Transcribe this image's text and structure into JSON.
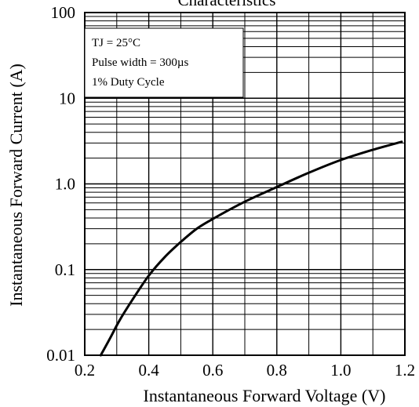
{
  "chart_data": {
    "type": "line",
    "title": "Characteristics",
    "xlabel": "Instantaneous Forward Voltage (V)",
    "ylabel": "Instantaneous Forward Current (A)",
    "xlim": [
      0.2,
      1.2
    ],
    "ylim": [
      0.01,
      100
    ],
    "yscale": "log",
    "grid": true,
    "x_ticks": [
      {
        "v": 0.2,
        "label": "0.2"
      },
      {
        "v": 0.4,
        "label": "0.4"
      },
      {
        "v": 0.6,
        "label": "0.6"
      },
      {
        "v": 0.8,
        "label": "0.8"
      },
      {
        "v": 1.0,
        "label": "1.0"
      },
      {
        "v": 1.2,
        "label": "1.2"
      }
    ],
    "y_ticks": [
      {
        "v": 0.01,
        "label": "0.01"
      },
      {
        "v": 0.1,
        "label": "0.1"
      },
      {
        "v": 1,
        "label": "1.0"
      },
      {
        "v": 10,
        "label": "10"
      },
      {
        "v": 100,
        "label": "100"
      }
    ],
    "annotation": [
      "TJ = 25°C",
      "Pulse width = 300µs",
      "1% Duty Cycle"
    ],
    "series": [
      {
        "x": [
          0.25,
          0.28,
          0.31,
          0.35,
          0.4,
          0.45,
          0.5,
          0.55,
          0.6,
          0.7,
          0.8,
          0.9,
          1.0,
          1.1,
          1.19
        ],
        "y": [
          0.01,
          0.016,
          0.026,
          0.045,
          0.085,
          0.14,
          0.21,
          0.3,
          0.39,
          0.62,
          0.92,
          1.35,
          1.9,
          2.5,
          3.1
        ]
      }
    ]
  }
}
